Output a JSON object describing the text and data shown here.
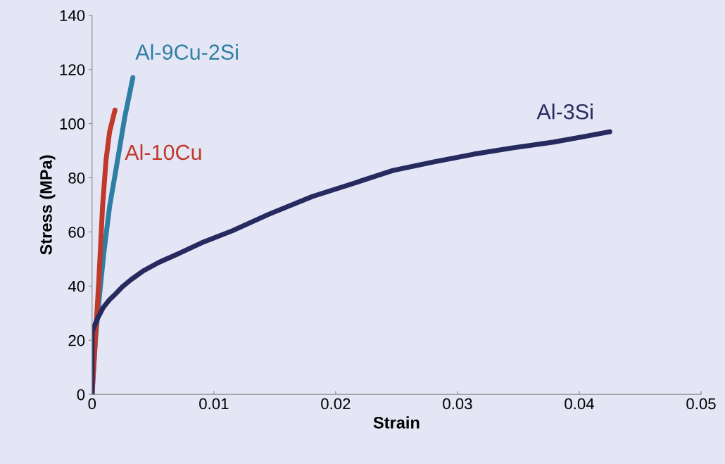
{
  "chart_data": {
    "type": "line",
    "xlabel": "Strain",
    "ylabel": "Stress (MPa)",
    "xlim": [
      0,
      0.05
    ],
    "ylim": [
      0,
      140
    ],
    "xticks": [
      0,
      0.01,
      0.02,
      0.03,
      0.04,
      0.05
    ],
    "yticks": [
      0,
      20,
      40,
      60,
      80,
      100,
      120,
      140
    ],
    "grid": false,
    "legend": false,
    "marker": "none",
    "line_style": "solid",
    "series": [
      {
        "name": "Al-9Cu-2Si",
        "color": "#2e7fa3",
        "x": [
          0,
          0.00029,
          0.00057,
          0.00096,
          0.00144,
          0.0021,
          0.00268,
          0.00335
        ],
        "values": [
          0,
          21,
          34.7,
          52,
          69.4,
          86.7,
          102.3,
          117
        ]
      },
      {
        "name": "Al-10Cu",
        "color": "#c0392b",
        "x": [
          0,
          0.00029,
          0.00057,
          0.00086,
          0.00115,
          0.00144,
          0.00188
        ],
        "values": [
          0,
          21.7,
          43.4,
          69.4,
          86.7,
          97,
          105
        ]
      },
      {
        "name": "Al-3Si",
        "color": "#262a5e",
        "x": [
          0,
          1e-05,
          0.00025,
          0.0005,
          0.0009,
          0.0014,
          0.0019,
          0.0025,
          0.0032,
          0.0042,
          0.0055,
          0.0072,
          0.009,
          0.0115,
          0.0145,
          0.0181,
          0.0215,
          0.0247,
          0.028,
          0.0313,
          0.0345,
          0.0379,
          0.0405,
          0.0425
        ],
        "values": [
          0,
          23,
          26,
          28.5,
          32,
          34.8,
          37,
          39.8,
          42.4,
          45.6,
          48.8,
          52.2,
          56,
          60.4,
          66.5,
          73.1,
          78,
          82.7,
          85.8,
          88.7,
          91,
          93.2,
          95.3,
          97
        ]
      }
    ]
  }
}
